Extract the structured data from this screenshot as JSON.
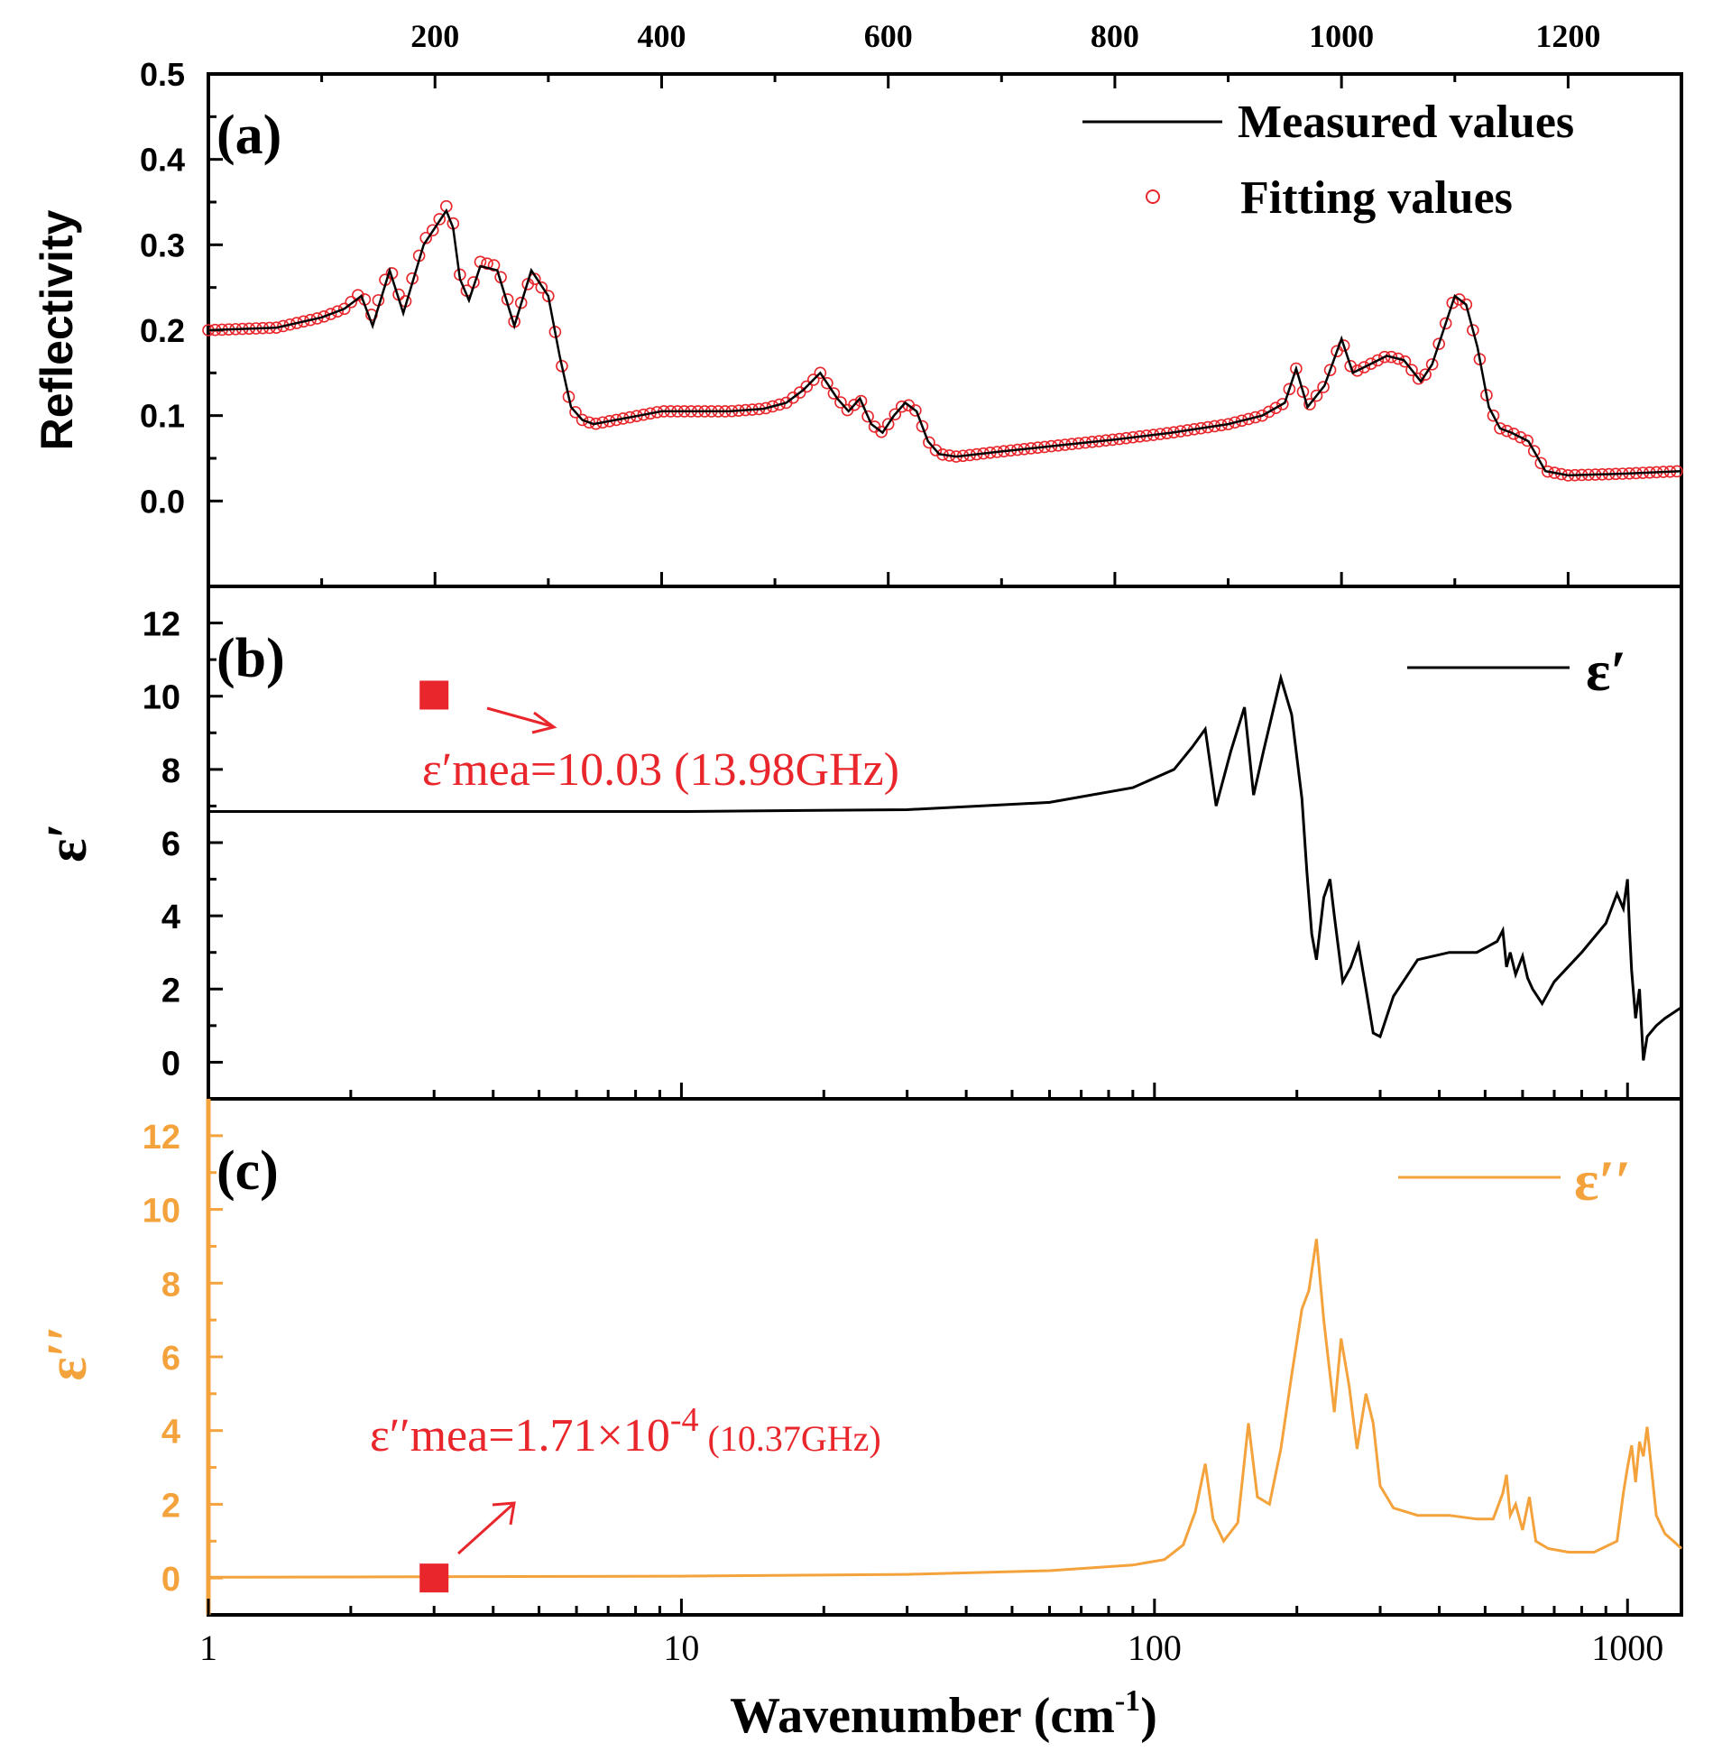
{
  "figure": {
    "xlabel_main": "Wavenumber (cm",
    "xlabel_sup": "-1",
    "xlabel_close": ")"
  },
  "panel_a": {
    "label": "(a)",
    "ylabel": "Reflectivity",
    "legend": {
      "measured": "Measured values",
      "fitting": "Fitting values"
    }
  },
  "panel_b": {
    "label": "(b)",
    "ylabel": "ε′",
    "legend": {
      "series": "ε′"
    },
    "annotation": {
      "prefix": "ε′mea=10.03 (13.98GHz)"
    }
  },
  "panel_c": {
    "label": "(c)",
    "ylabel": "ε′′",
    "legend": {
      "series": "ε′′"
    },
    "annotation": {
      "prefix": "ε′′mea=1.71×10",
      "sup": "-4",
      "suffix": " (10.37GHz)"
    }
  },
  "colors": {
    "measured": "#000000",
    "fitting": "#e8262b",
    "eps_real": "#000000",
    "eps_imag": "#f4a23c",
    "marker": "#e8262b"
  },
  "chart_data": [
    {
      "type": "scatter",
      "panel": "a",
      "xaxis_position": "top",
      "xlim": [
        0,
        1300
      ],
      "ylim": [
        -0.1,
        0.5
      ],
      "x_ticks": [
        200,
        400,
        600,
        800,
        1000,
        1200
      ],
      "y_ticks": [
        0.0,
        0.1,
        0.2,
        0.3,
        0.4,
        0.5
      ],
      "ylabel": "Reflectivity",
      "legend_position": "top-right",
      "series": [
        {
          "name": "Measured values",
          "style": "line",
          "x": [
            0,
            60,
            100,
            120,
            135,
            145,
            160,
            172,
            190,
            200,
            210,
            216,
            222,
            230,
            240,
            255,
            270,
            285,
            300,
            310,
            320,
            330,
            340,
            360,
            380,
            400,
            430,
            460,
            490,
            510,
            525,
            540,
            555,
            565,
            575,
            585,
            595,
            605,
            615,
            625,
            635,
            645,
            660,
            700,
            750,
            800,
            850,
            900,
            930,
            950,
            960,
            970,
            985,
            1000,
            1010,
            1025,
            1040,
            1055,
            1070,
            1080,
            1090,
            1100,
            1110,
            1120,
            1130,
            1140,
            1150,
            1165,
            1180,
            1200,
            1250,
            1300
          ],
          "y": [
            0.2,
            0.203,
            0.215,
            0.225,
            0.24,
            0.205,
            0.27,
            0.22,
            0.3,
            0.32,
            0.34,
            0.32,
            0.26,
            0.235,
            0.275,
            0.27,
            0.205,
            0.27,
            0.24,
            0.17,
            0.11,
            0.095,
            0.09,
            0.095,
            0.1,
            0.105,
            0.105,
            0.105,
            0.108,
            0.115,
            0.13,
            0.15,
            0.12,
            0.105,
            0.12,
            0.09,
            0.08,
            0.1,
            0.115,
            0.105,
            0.07,
            0.055,
            0.052,
            0.058,
            0.065,
            0.072,
            0.08,
            0.09,
            0.1,
            0.115,
            0.155,
            0.11,
            0.135,
            0.19,
            0.15,
            0.16,
            0.17,
            0.165,
            0.14,
            0.16,
            0.2,
            0.24,
            0.23,
            0.18,
            0.11,
            0.085,
            0.08,
            0.07,
            0.035,
            0.03,
            0.032,
            0.035
          ]
        },
        {
          "name": "Fitting values",
          "style": "markers",
          "x": [
            0,
            60,
            100,
            120,
            135,
            145,
            160,
            172,
            190,
            200,
            210,
            216,
            222,
            230,
            240,
            255,
            270,
            285,
            300,
            310,
            320,
            330,
            340,
            360,
            380,
            400,
            430,
            460,
            490,
            510,
            525,
            540,
            555,
            565,
            575,
            585,
            595,
            605,
            615,
            625,
            635,
            645,
            660,
            700,
            750,
            800,
            850,
            900,
            930,
            950,
            960,
            970,
            985,
            1000,
            1010,
            1025,
            1040,
            1055,
            1070,
            1080,
            1090,
            1100,
            1110,
            1120,
            1130,
            1140,
            1150,
            1165,
            1180,
            1200,
            1250,
            1300
          ],
          "y": [
            0.2,
            0.203,
            0.215,
            0.225,
            0.245,
            0.215,
            0.275,
            0.225,
            0.305,
            0.32,
            0.345,
            0.325,
            0.265,
            0.24,
            0.28,
            0.275,
            0.21,
            0.265,
            0.24,
            0.17,
            0.11,
            0.095,
            0.09,
            0.095,
            0.1,
            0.105,
            0.105,
            0.105,
            0.108,
            0.115,
            0.13,
            0.15,
            0.12,
            0.105,
            0.12,
            0.09,
            0.08,
            0.1,
            0.115,
            0.105,
            0.07,
            0.055,
            0.052,
            0.058,
            0.065,
            0.072,
            0.08,
            0.09,
            0.1,
            0.115,
            0.155,
            0.11,
            0.135,
            0.19,
            0.15,
            0.16,
            0.17,
            0.165,
            0.14,
            0.16,
            0.2,
            0.24,
            0.23,
            0.18,
            0.11,
            0.085,
            0.08,
            0.07,
            0.035,
            0.03,
            0.032,
            0.035
          ]
        }
      ]
    },
    {
      "type": "line",
      "panel": "b",
      "xscale": "log",
      "xlim": [
        1,
        1300
      ],
      "ylim": [
        -1,
        13
      ],
      "y_ticks": [
        0,
        2,
        4,
        6,
        8,
        10,
        12
      ],
      "ylabel": "ε′",
      "legend_position": "top-right",
      "series": [
        {
          "name": "ε′",
          "x": [
            1,
            10,
            30,
            60,
            90,
            110,
            120,
            128,
            135,
            145,
            155,
            162,
            170,
            185,
            195,
            205,
            210,
            215,
            220,
            228,
            235,
            240,
            250,
            260,
            270,
            280,
            290,
            300,
            320,
            360,
            420,
            480,
            530,
            545,
            555,
            565,
            580,
            600,
            615,
            630,
            660,
            700,
            800,
            900,
            950,
            980,
            1000,
            1010,
            1020,
            1040,
            1060,
            1080,
            1100,
            1150,
            1200,
            1300
          ],
          "y": [
            6.85,
            6.85,
            6.9,
            7.1,
            7.5,
            8.0,
            8.6,
            9.1,
            7.0,
            8.5,
            9.7,
            7.3,
            8.5,
            10.5,
            9.5,
            7.2,
            5.2,
            3.5,
            2.8,
            4.5,
            5.0,
            4.0,
            2.2,
            2.6,
            3.2,
            2.0,
            0.8,
            0.7,
            1.8,
            2.8,
            3.0,
            3.0,
            3.3,
            3.6,
            2.6,
            3.0,
            2.4,
            2.9,
            2.3,
            2.0,
            1.6,
            2.2,
            3.0,
            3.8,
            4.6,
            4.2,
            5.0,
            3.6,
            2.5,
            1.2,
            2.0,
            0.05,
            0.7,
            1.0,
            1.2,
            1.5
          ]
        }
      ],
      "annotation": {
        "text": "ε′mea=10.03 (13.98GHz)",
        "marker": {
          "x": 3,
          "y": 10.03
        }
      }
    },
    {
      "type": "line",
      "panel": "c",
      "xscale": "log",
      "xlim": [
        1,
        1300
      ],
      "ylim": [
        -1,
        13
      ],
      "x_ticks": [
        1,
        10,
        100,
        1000
      ],
      "y_ticks": [
        0,
        2,
        4,
        6,
        8,
        10,
        12
      ],
      "ylabel": "ε′′",
      "xlabel": "Wavenumber (cm-1)",
      "legend_position": "top-right",
      "series": [
        {
          "name": "ε′′",
          "x": [
            1,
            10,
            30,
            60,
            90,
            105,
            115,
            122,
            128,
            133,
            140,
            150,
            158,
            165,
            175,
            185,
            195,
            205,
            212,
            220,
            228,
            240,
            248,
            258,
            268,
            280,
            290,
            300,
            320,
            360,
            420,
            480,
            520,
            545,
            555,
            565,
            580,
            600,
            620,
            640,
            680,
            750,
            850,
            950,
            980,
            1000,
            1020,
            1040,
            1060,
            1080,
            1100,
            1150,
            1200,
            1250,
            1300
          ],
          "y": [
            0.02,
            0.05,
            0.1,
            0.2,
            0.35,
            0.5,
            0.9,
            1.8,
            3.1,
            1.6,
            1.0,
            1.5,
            4.2,
            2.2,
            2.0,
            3.5,
            5.5,
            7.3,
            7.8,
            9.2,
            7.0,
            4.5,
            6.5,
            5.2,
            3.5,
            5.0,
            4.2,
            2.5,
            1.9,
            1.7,
            1.7,
            1.6,
            1.6,
            2.3,
            2.8,
            1.7,
            2.0,
            1.3,
            2.2,
            1.0,
            0.8,
            0.7,
            0.7,
            1.0,
            2.3,
            3.0,
            3.6,
            2.6,
            3.7,
            3.3,
            4.1,
            1.7,
            1.2,
            1.0,
            0.8
          ]
        }
      ],
      "annotation": {
        "text": "ε′′mea=1.71×10-4 (10.37GHz)",
        "marker": {
          "x": 3,
          "y": 0.000171
        }
      }
    }
  ]
}
